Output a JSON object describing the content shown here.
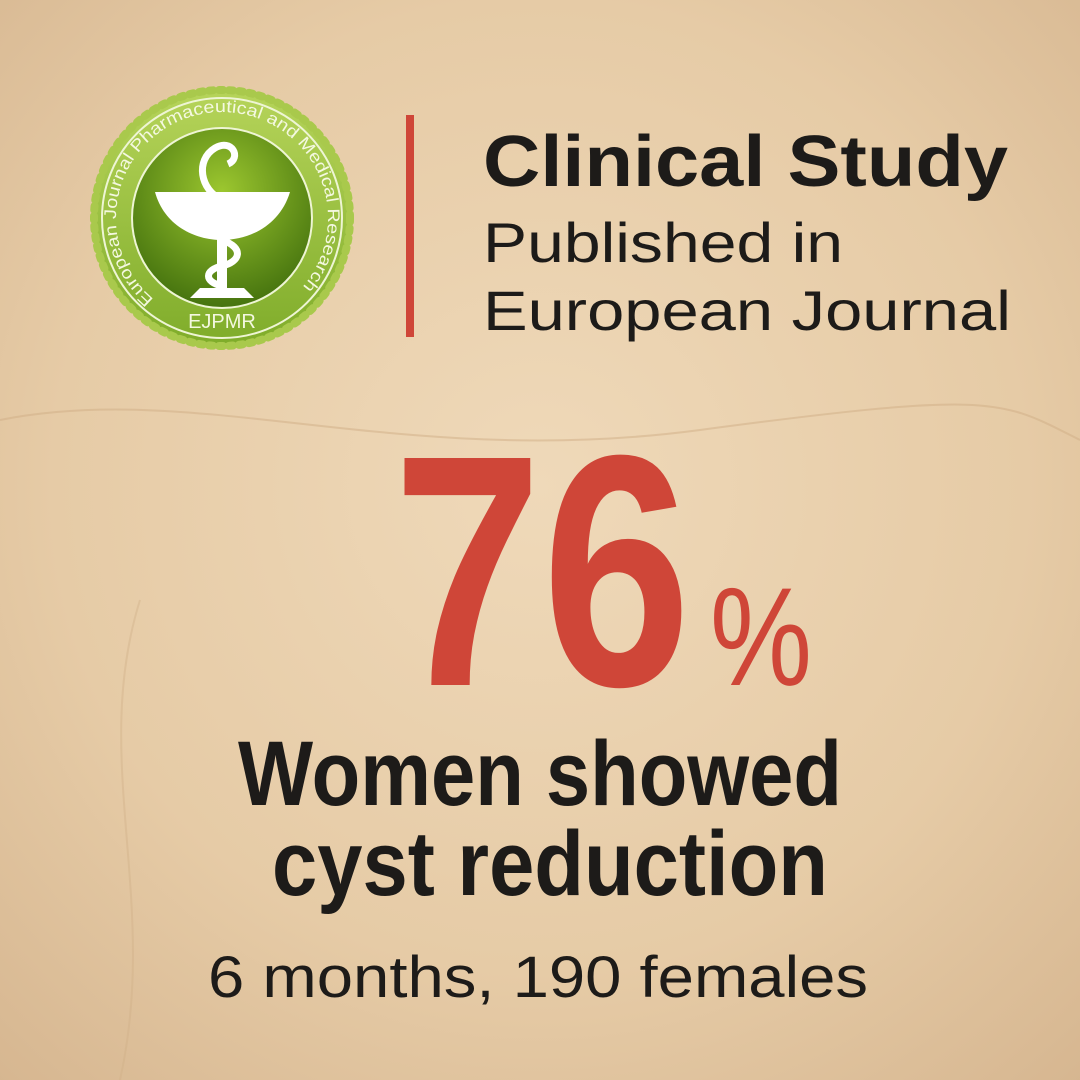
{
  "badge": {
    "ring_text": "European Journal Pharmaceutical and Medical Research",
    "acronym": "EJPMR"
  },
  "header": {
    "title": "Clinical Study",
    "subtitle_lines": [
      "Published in",
      "European Journal"
    ]
  },
  "stat": {
    "value": "76",
    "unit": "%"
  },
  "caption": {
    "lines": [
      "Women showed",
      "cyst reduction"
    ],
    "detail": "6 months, 190 females"
  }
}
